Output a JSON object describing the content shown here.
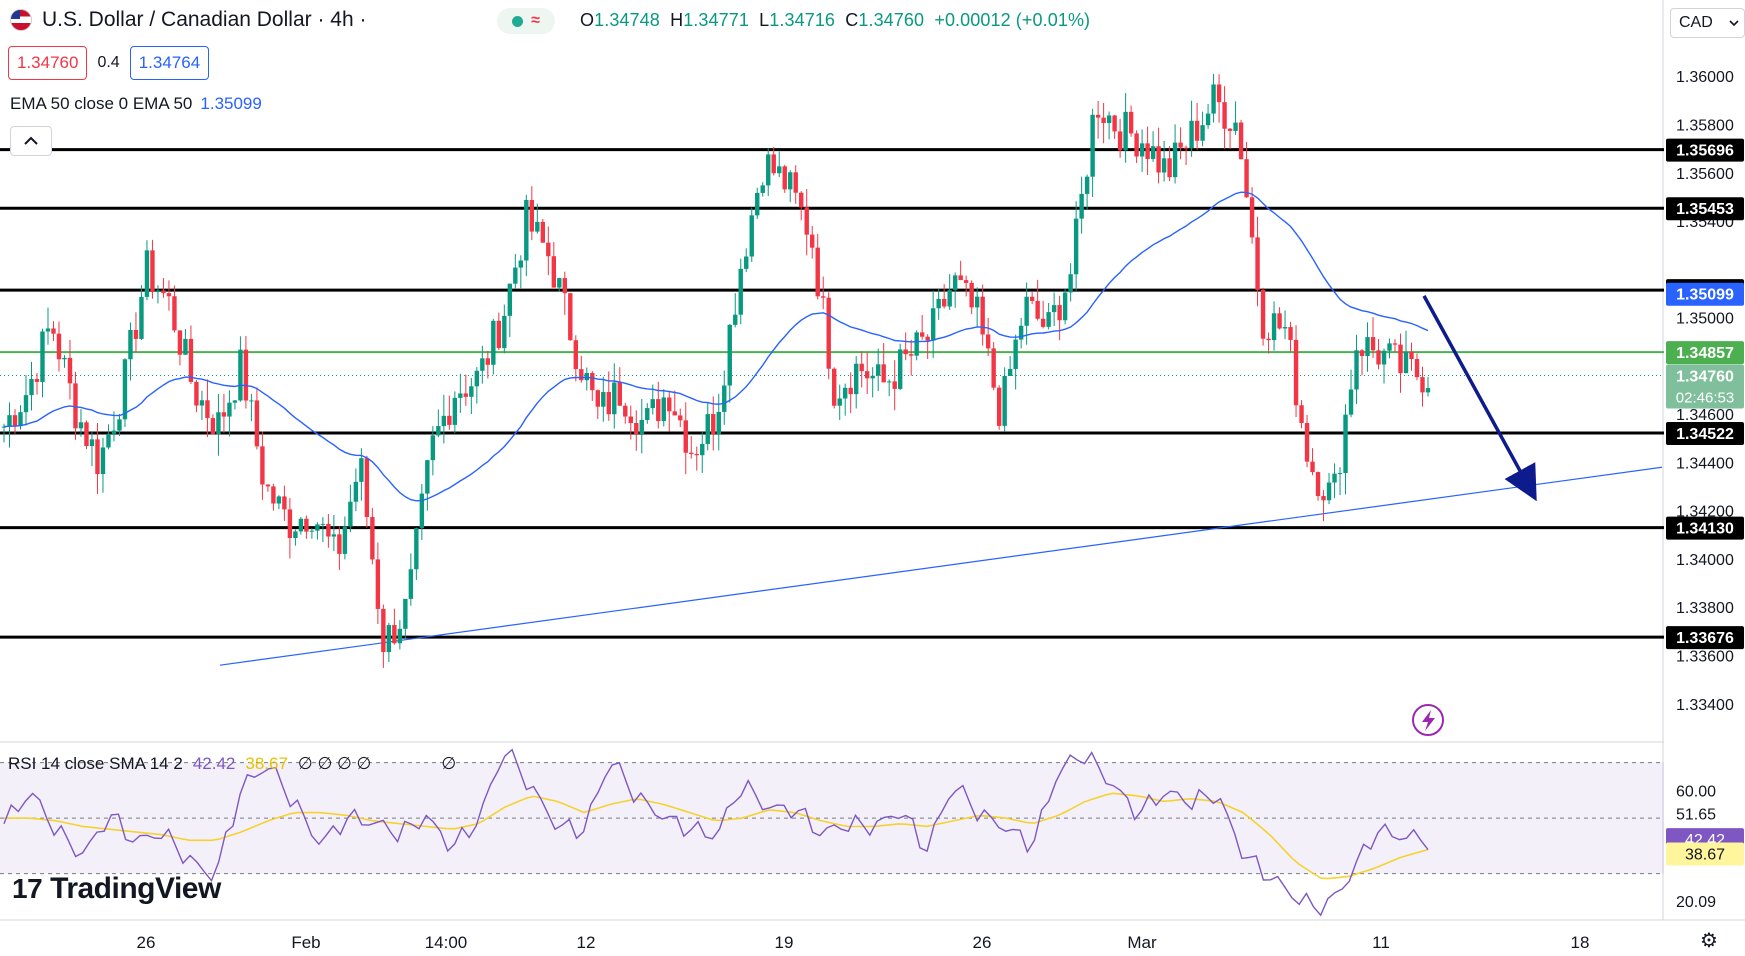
{
  "header": {
    "symbol_title": "U.S. Dollar / Canadian Dollar · 4h ·",
    "status_icon_wave": "≈",
    "ohlc": {
      "o_label": "O",
      "o": "1.34748",
      "h_label": "H",
      "h": "1.34771",
      "l_label": "L",
      "l": "1.34716",
      "c_label": "C",
      "c": "1.34760",
      "change": "+0.00012 (+0.01%)"
    },
    "sell_price": "1.34760",
    "spread": "0.4",
    "buy_price": "1.34764",
    "currency": "CAD"
  },
  "ema_legend": {
    "label": "EMA 50 close 0 EMA 50",
    "value": "1.35099"
  },
  "rsi_legend": {
    "label": "RSI 14 close SMA 14 2",
    "rsi_value": "42.42",
    "sma_value": "38.67",
    "extra": "∅ ∅ ∅ ∅",
    "extra2": "∅"
  },
  "logo": {
    "mark": "17",
    "text": "TradingView"
  },
  "icons": [
    "us-flag-icon",
    "status-dot-icon",
    "collapse-chevron-icon",
    "chevron-down-icon",
    "lightning-icon",
    "settings-icon"
  ],
  "colors": {
    "up": "#089981",
    "down": "#f23645",
    "ema": "#2962ff",
    "support": "#000000",
    "green_level": "#4caf50",
    "rsi": "#7e57c2",
    "rsi_sma": "#f5d22f",
    "arrow": "#0d1b8c"
  },
  "chart_data": [
    {
      "type": "candlestick",
      "title": "U.S. Dollar / Canadian Dollar · 4h",
      "ylim": [
        1.3325,
        1.3615
      ],
      "price_axis_ticks": [
        "1.36000",
        "1.35800",
        "1.35600",
        "1.35400",
        "1.35000",
        "1.34600",
        "1.34400",
        "1.34200",
        "1.34000",
        "1.33800",
        "1.33600",
        "1.33400"
      ],
      "x_axis_ticks": [
        "26",
        "Feb",
        "14:00",
        "12",
        "19",
        "26",
        "Mar",
        "11",
        "18"
      ],
      "horizontal_levels": [
        "1.35696",
        "1.35453",
        "1.35114",
        "1.34522",
        "1.34130",
        "1.33676"
      ],
      "highlighted_level": "1.34857",
      "current_price": "1.34760",
      "countdown": "02:46:53",
      "ema_value": "1.35099",
      "trendline": {
        "from_date": "2024-01-29",
        "from_price": 1.3356,
        "to_date": "2024-03-19",
        "to_price": 1.3438
      },
      "forecast_arrow": {
        "from_price": 1.3509,
        "to_price": 1.3429
      },
      "candles_anchor_closes": [
        1.3455,
        1.347,
        1.3498,
        1.3462,
        1.344,
        1.347,
        1.352,
        1.3505,
        1.347,
        1.3455,
        1.348,
        1.343,
        1.3415,
        1.342,
        1.34,
        1.344,
        1.3365,
        1.338,
        1.3445,
        1.347,
        1.3475,
        1.35,
        1.354,
        1.3525,
        1.349,
        1.346,
        1.347,
        1.3455,
        1.347,
        1.3445,
        1.346,
        1.352,
        1.3565,
        1.3555,
        1.3535,
        1.347,
        1.348,
        1.3472,
        1.3482,
        1.3492,
        1.3515,
        1.35,
        1.346,
        1.3505,
        1.3495,
        1.352,
        1.359,
        1.3578,
        1.3574,
        1.356,
        1.3575,
        1.359,
        1.358,
        1.35,
        1.3495,
        1.344,
        1.3425,
        1.349,
        1.3485,
        1.3478,
        1.3476
      ]
    },
    {
      "type": "line",
      "title": "RSI 14 close SMA 14 2",
      "ylim": [
        14,
        76
      ],
      "y_ticks": [
        "60.00",
        "51.65",
        "20.09"
      ],
      "levels": [
        70,
        50,
        30
      ],
      "rsi_value": "42.42",
      "sma_value": "38.67",
      "rsi_anchors": [
        48,
        58,
        45,
        38,
        52,
        40,
        44,
        36,
        30,
        60,
        68,
        56,
        42,
        50,
        47,
        44,
        52,
        40,
        48,
        74,
        62,
        48,
        45,
        70,
        58,
        52,
        46,
        42,
        62,
        55,
        54,
        43,
        47,
        48,
        54,
        38,
        61,
        52,
        48,
        40,
        66,
        73,
        64,
        52,
        58,
        55,
        60,
        38,
        28,
        20,
        17,
        30,
        45,
        42,
        42
      ],
      "sma_anchors": [
        50,
        50,
        49,
        47,
        46,
        45,
        44,
        42,
        42,
        45,
        49,
        52,
        52,
        51,
        49,
        48,
        47,
        46,
        48,
        54,
        58,
        56,
        52,
        55,
        57,
        55,
        52,
        49,
        50,
        53,
        52,
        49,
        47,
        47,
        48,
        47,
        49,
        51,
        50,
        48,
        51,
        56,
        59,
        58,
        56,
        57,
        56,
        52,
        44,
        34,
        28,
        29,
        32,
        36,
        38.67
      ]
    }
  ]
}
